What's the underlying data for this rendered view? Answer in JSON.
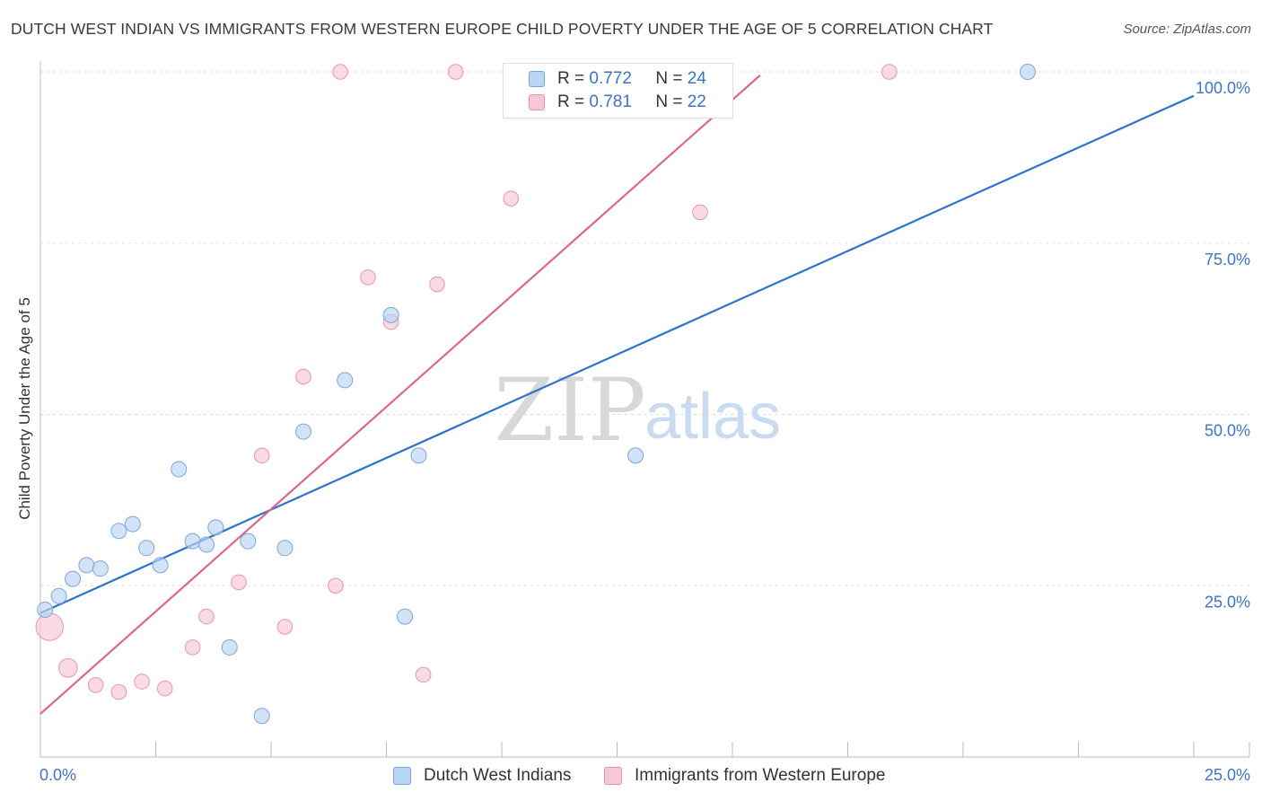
{
  "title": "DUTCH WEST INDIAN VS IMMIGRANTS FROM WESTERN EUROPE CHILD POVERTY UNDER THE AGE OF 5 CORRELATION CHART",
  "source": "Source: ZipAtlas.com",
  "watermark": {
    "zip": "ZIP",
    "atlas": "atlas"
  },
  "legend": {
    "r_label": "R =",
    "n_label": "N =",
    "series": [
      {
        "name": "Dutch West Indians",
        "r": "0.772",
        "n": "24"
      },
      {
        "name": "Immigrants from Western Europe",
        "r": "0.781",
        "n": "22"
      }
    ]
  },
  "colors": {
    "blue_fill": "#bad4f5",
    "blue_stroke": "#7aa6e0",
    "blue_line": "#2b72cc",
    "pink_fill": "#f8c6d6",
    "pink_stroke": "#ec92b0",
    "pink_line": "#e0638d",
    "accent_text": "#3a74c8",
    "grid": "#dddddd"
  },
  "chart_data": {
    "type": "scatter",
    "title": "DUTCH WEST INDIAN VS IMMIGRANTS FROM WESTERN EUROPE CHILD POVERTY UNDER THE AGE OF 5 CORRELATION CHART",
    "xlabel": "",
    "ylabel": "Child Poverty Under the Age of 5",
    "xlim": [
      0,
      25
    ],
    "ylim": [
      0,
      100
    ],
    "x_ticks": [
      "0.0%",
      "25.0%"
    ],
    "y_ticks": [
      {
        "value": 25,
        "label": "25.0%"
      },
      {
        "value": 50,
        "label": "50.0%"
      },
      {
        "value": 75,
        "label": "75.0%"
      },
      {
        "value": 100,
        "label": "100.0%"
      }
    ],
    "series": [
      {
        "name": "Dutch West Indians",
        "color": "blue",
        "points": [
          [
            0.1,
            21.5
          ],
          [
            0.4,
            23.5
          ],
          [
            0.7,
            26.0
          ],
          [
            1.0,
            28.0
          ],
          [
            1.3,
            27.5
          ],
          [
            1.7,
            33.0
          ],
          [
            2.0,
            34.0
          ],
          [
            2.3,
            30.5
          ],
          [
            2.6,
            28.0
          ],
          [
            3.0,
            42.0
          ],
          [
            3.3,
            31.5
          ],
          [
            3.6,
            31.0
          ],
          [
            3.8,
            33.5
          ],
          [
            4.1,
            16.0
          ],
          [
            4.5,
            31.5
          ],
          [
            4.8,
            6.0
          ],
          [
            5.3,
            30.5
          ],
          [
            5.7,
            47.5
          ],
          [
            6.6,
            55.0
          ],
          [
            7.6,
            64.5
          ],
          [
            7.9,
            20.5
          ],
          [
            8.2,
            44.0
          ],
          [
            12.9,
            44.0
          ],
          [
            21.4,
            100.0
          ]
        ],
        "trend": {
          "x": [
            0,
            25
          ],
          "y": [
            21.0,
            96.5
          ]
        }
      },
      {
        "name": "Immigrants from Western Europe",
        "color": "pink",
        "points": [
          [
            0.2,
            19.0
          ],
          [
            1.2,
            10.5
          ],
          [
            1.7,
            9.5
          ],
          [
            2.2,
            11.0
          ],
          [
            2.7,
            10.0
          ],
          [
            3.3,
            16.0
          ],
          [
            3.6,
            20.5
          ],
          [
            4.3,
            25.5
          ],
          [
            4.8,
            44.0
          ],
          [
            5.3,
            19.0
          ],
          [
            5.7,
            55.5
          ],
          [
            6.4,
            25.0
          ],
          [
            6.5,
            100.0
          ],
          [
            7.1,
            70.0
          ],
          [
            7.6,
            63.5
          ],
          [
            8.3,
            12.0
          ],
          [
            8.6,
            69.0
          ],
          [
            9.0,
            100.0
          ],
          [
            10.2,
            81.5
          ],
          [
            14.3,
            79.5
          ],
          [
            18.4,
            100.0
          ],
          [
            0.6,
            13.0
          ]
        ],
        "sizes": [
          22,
          12,
          12,
          12,
          12,
          12,
          12,
          12,
          12,
          12,
          12,
          12,
          12,
          12,
          12,
          12,
          12,
          12,
          12,
          12,
          12,
          15
        ],
        "trend": {
          "x": [
            0,
            15.6
          ],
          "y": [
            6.3,
            99.5
          ]
        }
      }
    ]
  }
}
